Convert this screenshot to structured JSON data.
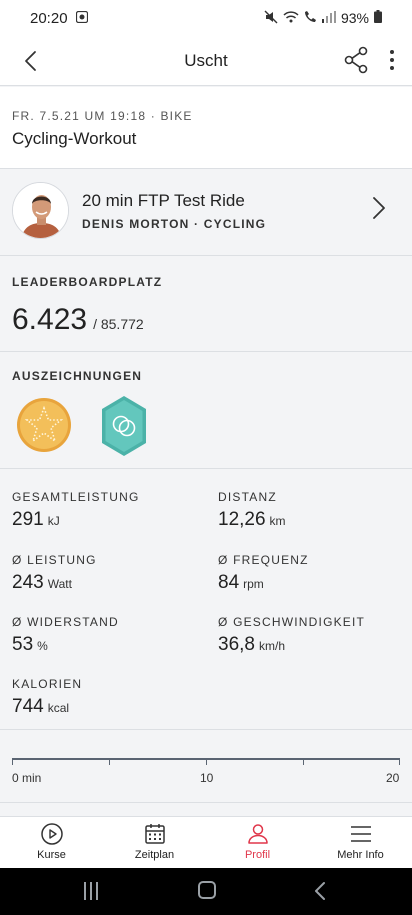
{
  "status_bar": {
    "time": "20:20",
    "battery": "93%"
  },
  "header": {
    "title": "Uscht"
  },
  "workout": {
    "meta": "FR. 7.5.21 UM 19:18 · BIKE",
    "title": "Cycling-Workout"
  },
  "ride": {
    "title": "20 min FTP Test Ride",
    "subtitle": "DENIS MORTON · CYCLING"
  },
  "leaderboard": {
    "label": "LEADERBOARDPLATZ",
    "rank": "6.423",
    "total": "/ 85.772"
  },
  "awards": {
    "label": "AUSZEICHNUNGEN",
    "badges": [
      {
        "icon": "star-badge-icon",
        "color": "#f0b84a"
      },
      {
        "icon": "hexagon-badge-icon",
        "color": "#5cc2b8"
      }
    ]
  },
  "stats": [
    {
      "label": "GESAMTLEISTUNG",
      "value": "291",
      "unit": "kJ"
    },
    {
      "label": "DISTANZ",
      "value": "12,26",
      "unit": "km"
    },
    {
      "label": "Ø LEISTUNG",
      "value": "243",
      "unit": "Watt"
    },
    {
      "label": "Ø FREQUENZ",
      "value": "84",
      "unit": "rpm"
    },
    {
      "label": "Ø WIDERSTAND",
      "value": "53",
      "unit": "%"
    },
    {
      "label": "Ø GESCHWINDIGKEIT",
      "value": "36,8",
      "unit": "km/h"
    },
    {
      "label": "KALORIEN",
      "value": "744",
      "unit": "kcal"
    }
  ],
  "timeline": {
    "labels": [
      "0 min",
      "10",
      "20"
    ]
  },
  "tabs": [
    {
      "label": "Kurse",
      "icon": "play-circle-icon",
      "active": false
    },
    {
      "label": "Zeitplan",
      "icon": "calendar-icon",
      "active": false
    },
    {
      "label": "Profil",
      "icon": "person-icon",
      "active": true
    },
    {
      "label": "Mehr Info",
      "icon": "menu-icon",
      "active": false
    }
  ],
  "colors": {
    "accent": "#e0364a",
    "background": "#f3f4f6"
  }
}
